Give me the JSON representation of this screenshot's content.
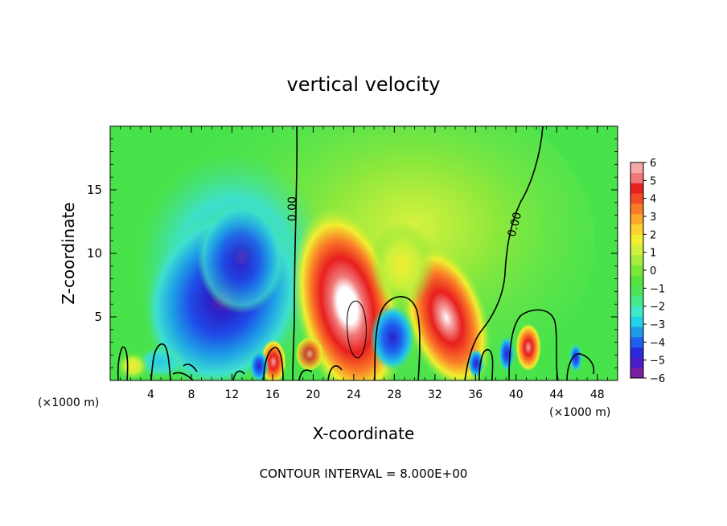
{
  "chart_data": {
    "type": "heatmap",
    "title": "vertical velocity",
    "xlabel": "X-coordinate",
    "ylabel": "Z-coordinate",
    "x_unit": "(×1000 m)",
    "x_unit_right": "(×1000 m)",
    "footer": "CONTOUR INTERVAL = 8.000E+00",
    "xlim": [
      0,
      50
    ],
    "ylim": [
      0,
      20
    ],
    "xticks": [
      4,
      8,
      12,
      16,
      20,
      24,
      28,
      32,
      36,
      40,
      44,
      48
    ],
    "yticks": [
      5,
      10,
      15
    ],
    "colorbar": {
      "min": -6,
      "max": 6,
      "tick_labels": [
        "6",
        "5",
        "4",
        "3",
        "2",
        "1",
        "0",
        "−1",
        "−2",
        "−3",
        "−4",
        "−5",
        "−6"
      ],
      "colors": [
        "#7a1fa2",
        "#4a1ec8",
        "#2a2adc",
        "#1e5ff0",
        "#1e9be6",
        "#22d2e6",
        "#3ee8c8",
        "#46e88c",
        "#4ee45a",
        "#58e23c",
        "#7ae83a",
        "#a6ec3c",
        "#d2f03e",
        "#f2ee30",
        "#fcd22e",
        "#fca82a",
        "#fa7a28",
        "#f24a24",
        "#e82020",
        "#f07878",
        "#f4a8a8"
      ]
    },
    "contour_labels": [
      {
        "text": "0.00",
        "x": 18.3,
        "y": 13.5,
        "rotate": -90
      },
      {
        "text": "0.00",
        "x": 40.2,
        "y": 12.2,
        "rotate": -75
      }
    ],
    "features": [
      {
        "kind": "downdraft",
        "center_x": 10.5,
        "center_z": 6.0,
        "value_min": -6
      },
      {
        "kind": "updraft",
        "center_x": 23.5,
        "center_z": 5.5,
        "value_max": 6
      },
      {
        "kind": "updraft",
        "center_x": 32.5,
        "center_z": 5.0,
        "value_max": 5
      },
      {
        "kind": "updraft",
        "center_x": 16.0,
        "center_z": 1.5,
        "value_max": 5
      },
      {
        "kind": "updraft",
        "center_x": 41.0,
        "center_z": 2.5,
        "value_max": 4
      },
      {
        "kind": "downdraft",
        "center_x": 28.0,
        "center_z": 3.0,
        "value_min": -4
      }
    ]
  }
}
